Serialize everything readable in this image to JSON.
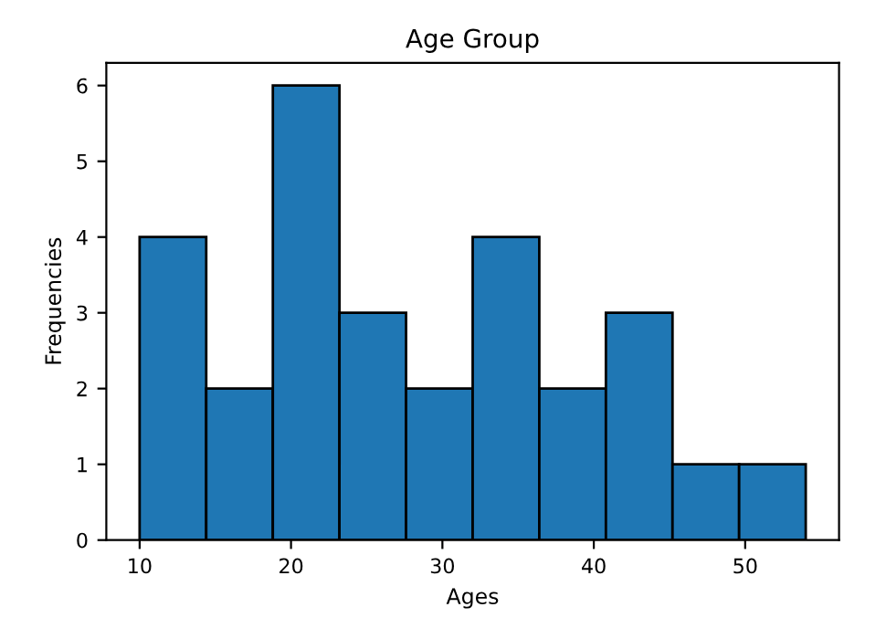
{
  "chart_data": {
    "type": "histogram",
    "title": "Age Group",
    "xlabel": "Ages",
    "ylabel": "Frequencies",
    "bins": [
      10,
      14.4,
      18.8,
      23.2,
      27.6,
      32,
      36.4,
      40.8,
      45.2,
      49.6,
      54
    ],
    "values": [
      4,
      2,
      6,
      3,
      2,
      4,
      2,
      3,
      1,
      1
    ],
    "color": "#1f77b4",
    "xlim": [
      7.8,
      56.2
    ],
    "xticks": [
      10,
      20,
      30,
      40,
      50
    ],
    "ylim": [
      0,
      6.3
    ],
    "yticks": [
      0,
      1,
      2,
      3,
      4,
      5,
      6
    ],
    "grid": false
  }
}
